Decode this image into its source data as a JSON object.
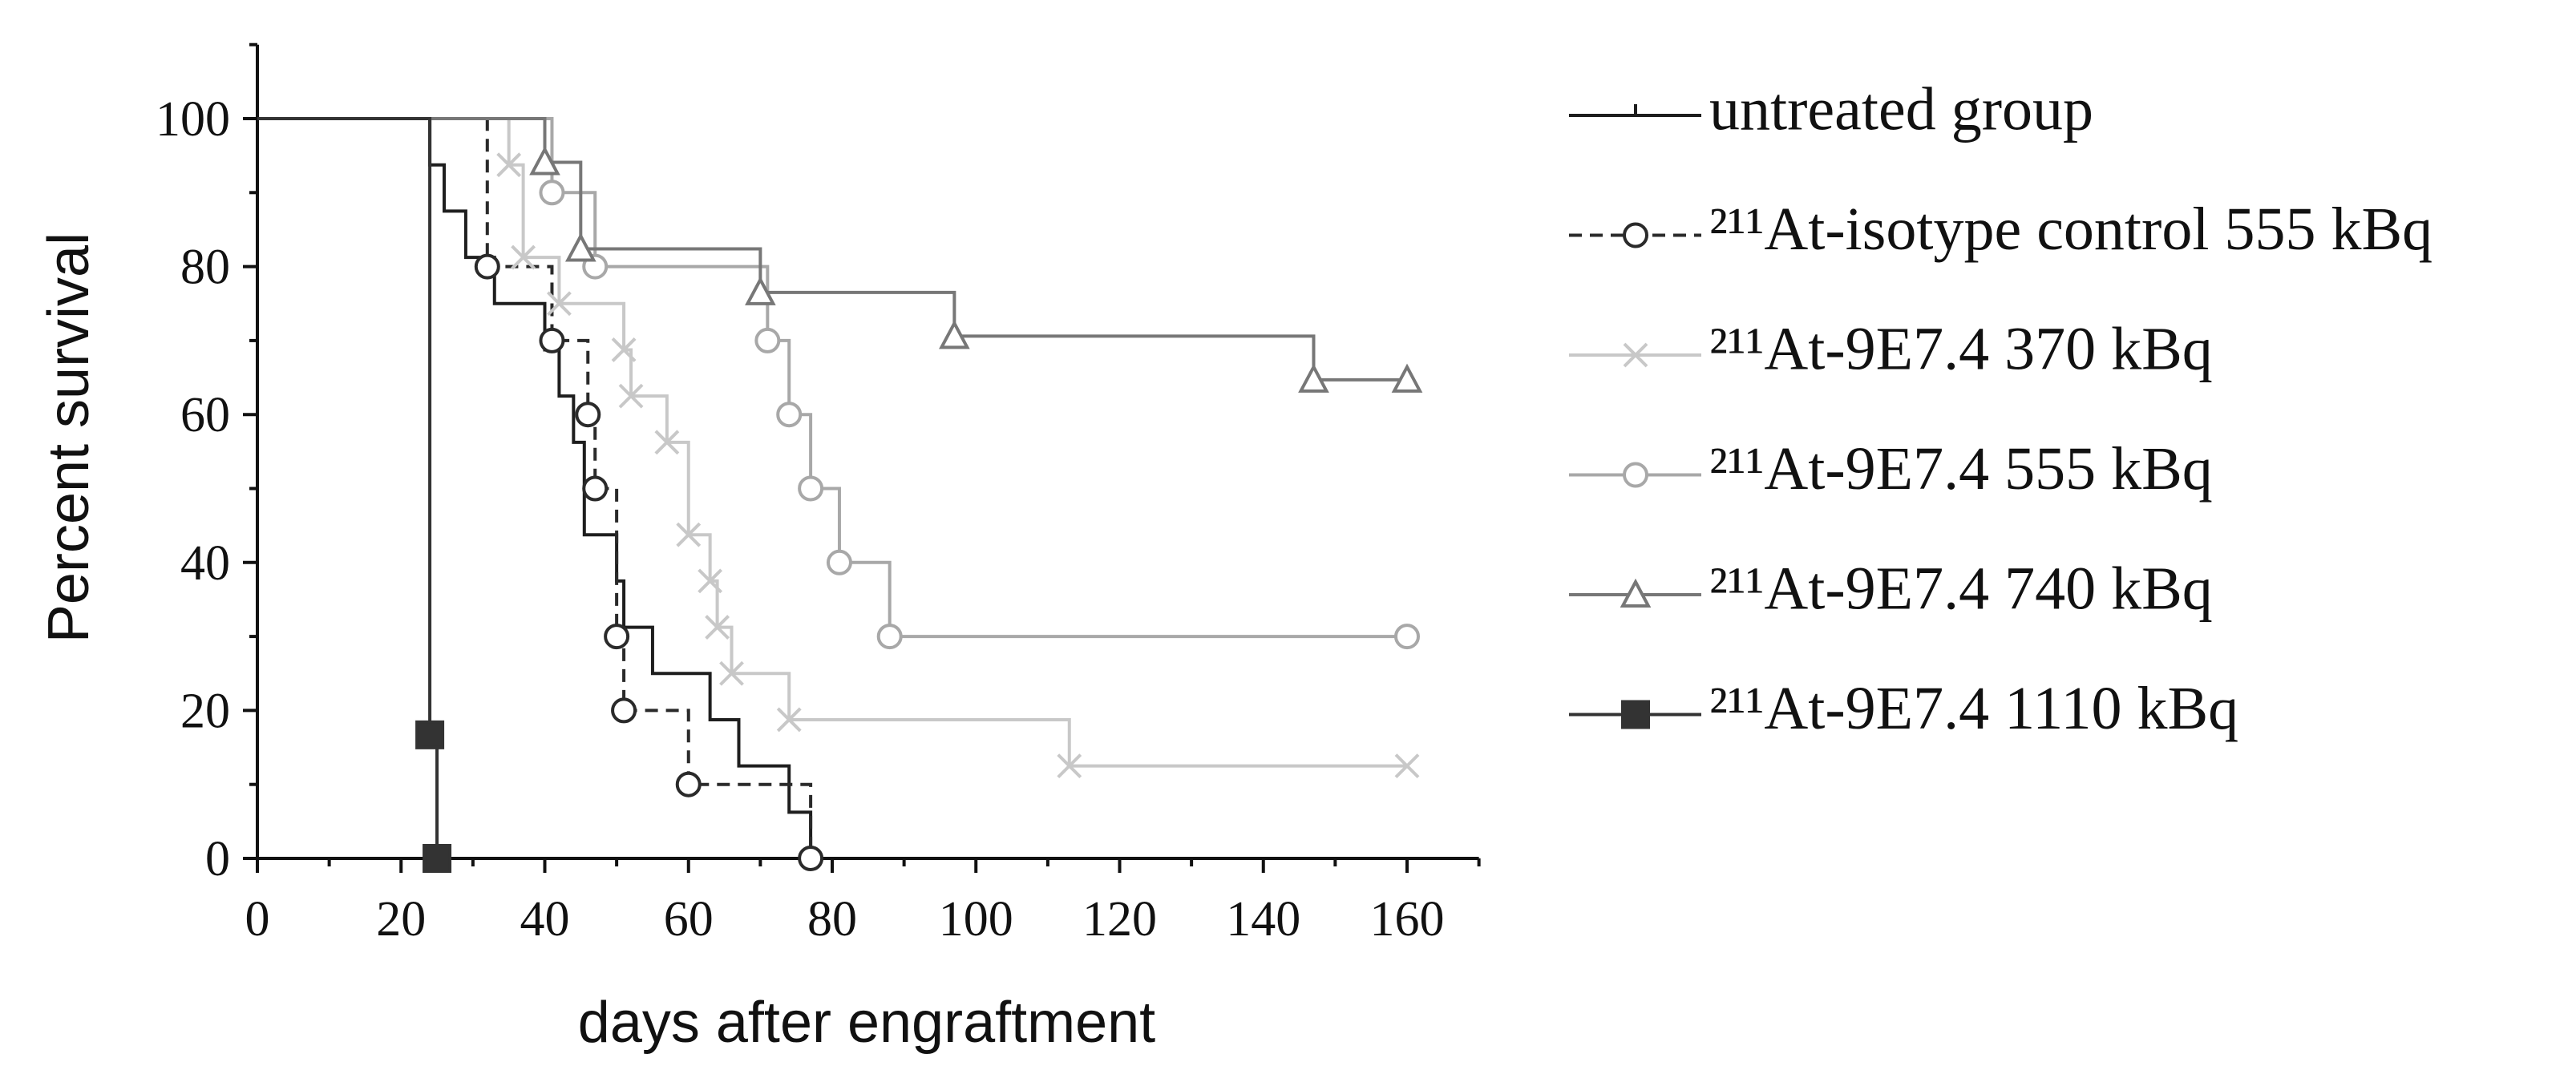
{
  "chart_data": {
    "type": "survival",
    "xlabel": "days after engraftment",
    "ylabel": "Percent survival",
    "xlim": [
      0,
      170
    ],
    "ylim": [
      0,
      110
    ],
    "xticks": [
      0,
      20,
      40,
      60,
      80,
      100,
      120,
      140,
      160
    ],
    "yticks": [
      0,
      20,
      40,
      60,
      80,
      100
    ],
    "xminor": [
      10,
      30,
      50,
      70,
      90,
      110,
      130,
      150,
      170
    ],
    "yminor": [
      10,
      30,
      50,
      70,
      90,
      110
    ],
    "series": [
      {
        "name": "untreated group",
        "color": "#1e1e1e",
        "dash": false,
        "marker": "tick",
        "markers_on_points": false,
        "x": [
          0,
          24,
          26,
          29,
          33,
          40,
          42,
          44,
          45.5,
          50,
          51,
          55,
          63,
          67,
          74,
          77
        ],
        "values": [
          100,
          93.75,
          87.5,
          81.25,
          75,
          68.75,
          62.5,
          56.25,
          43.75,
          37.5,
          31.25,
          25,
          18.75,
          12.5,
          6.25,
          0
        ]
      },
      {
        "name": "²¹¹At-isotype control 555 kBq",
        "color": "#2a2a2a",
        "dash": true,
        "marker": "circle",
        "markers_on_points": true,
        "x": [
          0,
          32,
          41,
          46,
          47,
          50,
          51,
          60,
          77
        ],
        "values": [
          100,
          80,
          70,
          60,
          50,
          30,
          20,
          10,
          0
        ]
      },
      {
        "name": "²¹¹At-9E7.4 370 kBq",
        "color": "#c8c8c8",
        "dash": false,
        "marker": "cross",
        "markers_on_points": true,
        "x": [
          0,
          35,
          37,
          42,
          51,
          52,
          57,
          60,
          63,
          64,
          66,
          74,
          113,
          160
        ],
        "values": [
          100,
          93.75,
          81.25,
          75,
          68.75,
          62.5,
          56.25,
          43.75,
          37.5,
          31.25,
          25,
          18.75,
          12.5,
          12.5
        ]
      },
      {
        "name": "²¹¹At-9E7.4 555 kBq",
        "color": "#a8a8a8",
        "dash": false,
        "marker": "circle",
        "markers_on_points": true,
        "x": [
          0,
          41,
          47,
          71,
          74,
          77,
          81,
          88,
          160
        ],
        "values": [
          100,
          90,
          80,
          70,
          60,
          50,
          40,
          30,
          30
        ]
      },
      {
        "name": "²¹¹At-9E7.4 740 kBq",
        "color": "#777777",
        "dash": false,
        "marker": "triangle",
        "markers_on_points": true,
        "x": [
          0,
          40,
          45,
          70,
          97,
          147,
          160
        ],
        "values": [
          100,
          94.1,
          82.4,
          76.5,
          70.6,
          64.7,
          64.7
        ]
      },
      {
        "name": "²¹¹At-9E7.4 1110 kBq",
        "color": "#333333",
        "dash": false,
        "marker": "square",
        "markers_on_points": true,
        "x": [
          0,
          24,
          25
        ],
        "values": [
          100,
          16.7,
          0
        ]
      }
    ]
  }
}
